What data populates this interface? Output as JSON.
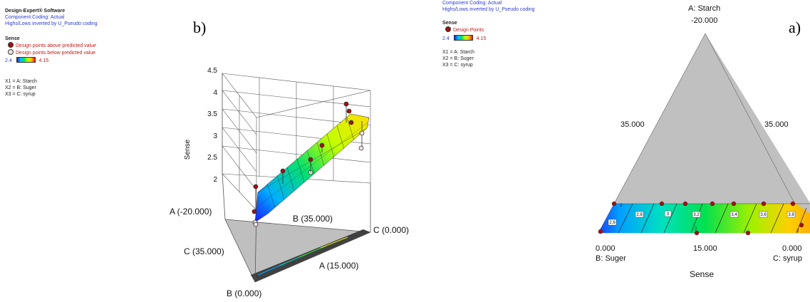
{
  "left_panel": {
    "software": "Design-Expert® Software",
    "coding": "Component Coding: Actual",
    "highs_lows": "Highs/Lows inverted by U_Pseudo coding",
    "response": "Sense",
    "legend_above": "Design points above predicted value",
    "legend_below": "Design points below predicted value",
    "range_low": "2.4",
    "range_high": "4.15",
    "x1": "X1 = A: Starch",
    "x2": "X2 = B: Suger",
    "x3": "X3 = C: syrup"
  },
  "right_panel": {
    "coding": "Component Coding: Actual",
    "highs_lows": "Highs/Lows inverted by U_Pseudo coding",
    "response": "Sense",
    "legend_points": "Design Points",
    "range_low": "2.4",
    "range_high": "4.15",
    "x1": "X1 = A: Starch",
    "x2": "X2 = B: Suger",
    "x3": "X3 = C: syrup"
  },
  "colors": {
    "point_fill": "#a01010",
    "point_open": "#f4e0e0",
    "surface_low": "#1a1aff",
    "surface_high": "#ffdd00",
    "triangle_gray": "#c0c0c0",
    "projection_dark": "#404040"
  },
  "chart_data": [
    {
      "type": "surface",
      "panel": "b)",
      "zlabel": "Sense",
      "z_ticks": [
        "2",
        "2.5",
        "3",
        "3.5",
        "4",
        "4.5"
      ],
      "z_range": [
        2,
        4.5
      ],
      "vertex_labels": {
        "a_top": "A (-20.000)",
        "b_mid": "B (35.000)",
        "c_right": "C (0.000)",
        "c_left": "C (35.000)",
        "a_bottom": "A (15.000)",
        "b_bottom": "B (0.000)"
      },
      "surface_range": [
        2.4,
        4.15
      ],
      "design_points": [
        {
          "z": 2.1,
          "above": true
        },
        {
          "z": 2.0,
          "above": false
        },
        {
          "z": 2.6,
          "above": true
        },
        {
          "z": 2.95,
          "above": true
        },
        {
          "z": 2.55,
          "above": false
        },
        {
          "z": 3.5,
          "above": true
        },
        {
          "z": 3.8,
          "above": true
        },
        {
          "z": 3.7,
          "above": true
        },
        {
          "z": 3.55,
          "above": true
        },
        {
          "z": 3.3,
          "above": false
        },
        {
          "z": 3.1,
          "above": false
        }
      ]
    },
    {
      "type": "contour",
      "panel": "a)",
      "xlabel": "Sense",
      "top_vertex": "A: Starch",
      "top_value": "-20.000",
      "left_side_value": "35.000",
      "right_side_value": "35.000",
      "bottom_left_value": "0.000",
      "bottom_left_label": "B: Suger",
      "bottom_mid_value": "15.000",
      "bottom_right_value": "0.000",
      "bottom_right_label": "C: syrup",
      "contour_levels": [
        "2.6",
        "2.8",
        "3",
        "3.2",
        "3.4",
        "3.6",
        "3.8"
      ],
      "design_point_count_labels": [
        "2",
        "2",
        "2"
      ]
    }
  ]
}
